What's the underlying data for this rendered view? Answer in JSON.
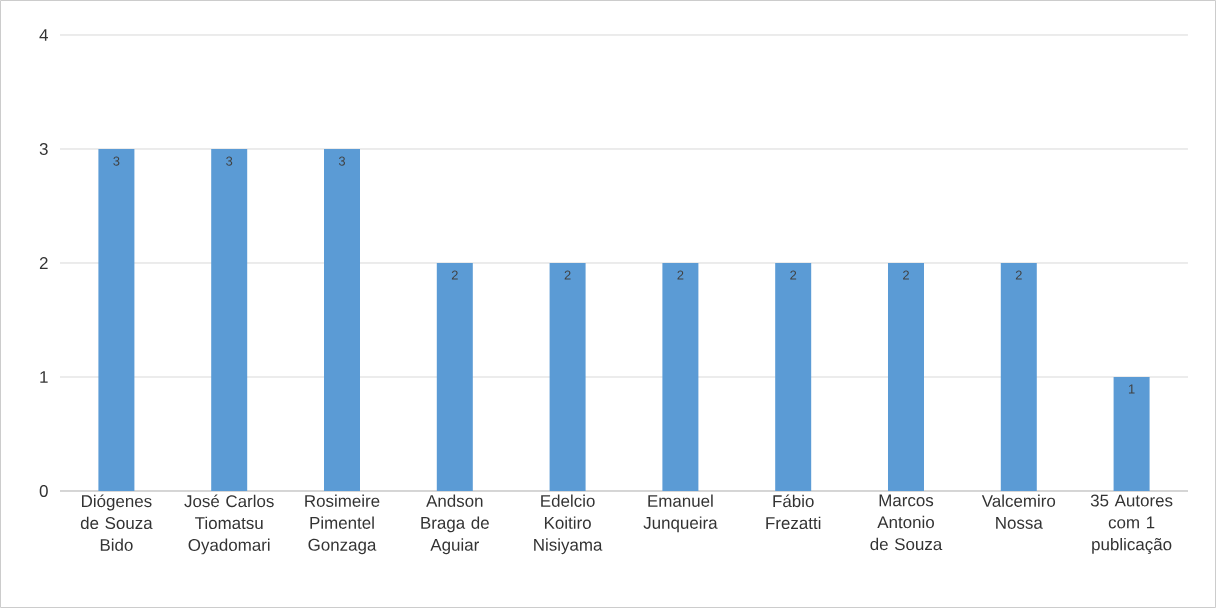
{
  "chart_data": {
    "type": "bar",
    "categories": [
      "Diógenes de Souza Bido",
      "José Carlos Tiomatsu Oyadomari",
      "Rosimeire Pimentel Gonzaga",
      "Andson Braga de Aguiar",
      "Edelcio Koitiro Nisiyama",
      "Emanuel Junqueira",
      "Fábio Frezatti",
      "Marcos Antonio de Souza",
      "Valcemiro Nossa",
      "35 Autores com 1 publicação"
    ],
    "values": [
      3,
      3,
      3,
      2,
      2,
      2,
      2,
      2,
      2,
      1
    ],
    "color": "#5b9bd5",
    "ylim": [
      0,
      4
    ],
    "yticks": [
      0,
      1,
      2,
      3,
      4
    ],
    "grid": "y",
    "data_labels": true
  }
}
